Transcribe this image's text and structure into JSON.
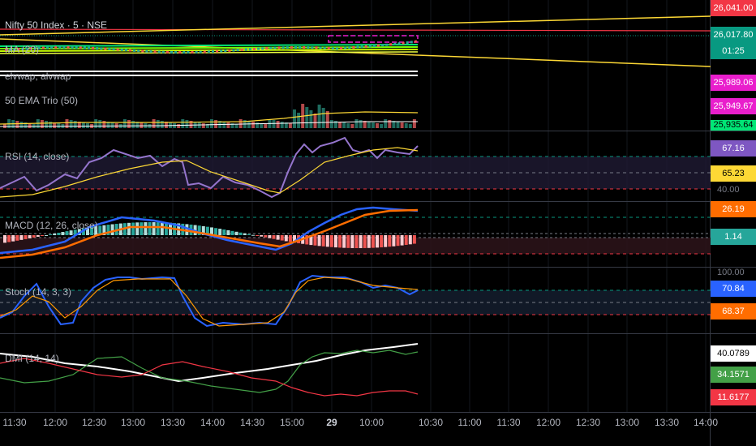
{
  "symbol": {
    "title": "Nifty 50 Index · 5 · NSE"
  },
  "indicators": {
    "ma": "MA (20)",
    "vwap": "elvwap, alvwap",
    "ema": "50 EMA Trio (50)",
    "rsi": "RSI (14, close)",
    "macd": "MACD (12, 26, close)",
    "stoch": "Stoch (14, 3, 3)",
    "dmi": "DMI (14, 14)"
  },
  "price_scale": {
    "p1": {
      "value": "26,041.00",
      "bg": "#f23645",
      "fg": "#ffffff"
    },
    "p2": {
      "value": "26,017.80",
      "bg": "#089981",
      "fg": "#ffffff"
    },
    "p2b": {
      "value": "01:25",
      "bg": "#089981",
      "fg": "#ffffff"
    },
    "p3": {
      "value": "25,989.06",
      "bg": "#e91ecc",
      "fg": "#ffffff"
    },
    "p4": {
      "value": "25,949.67",
      "bg": "#e91ecc",
      "fg": "#ffffff"
    },
    "p5": {
      "value": "25,935.64",
      "bg": "#00e676",
      "fg": "#000000"
    },
    "rsi1": {
      "value": "67.16",
      "bg": "#7e57c2",
      "fg": "#ffffff"
    },
    "rsi2": {
      "value": "65.23",
      "bg": "#fdd835",
      "fg": "#000000"
    },
    "rsi_scale": "40.00",
    "macd1": {
      "value": "26.19",
      "bg": "#ff6d00",
      "fg": "#ffffff"
    },
    "macd2": {
      "value": "1.14",
      "bg": "#26a69a",
      "fg": "#ffffff"
    },
    "stoch_scale": "100.00",
    "stoch1": {
      "value": "70.84",
      "bg": "#2962ff",
      "fg": "#ffffff"
    },
    "stoch2": {
      "value": "68.37",
      "bg": "#ff6d00",
      "fg": "#ffffff"
    },
    "dmi1": {
      "value": "40.0789",
      "bg": "#ffffff",
      "fg": "#000000"
    },
    "dmi2": {
      "value": "34.1571",
      "bg": "#43a047",
      "fg": "#ffffff"
    },
    "dmi3": {
      "value": "11.6177",
      "bg": "#f23645",
      "fg": "#ffffff"
    }
  },
  "time_axis": [
    "11:30",
    "12:00",
    "12:30",
    "13:00",
    "13:30",
    "14:00",
    "14:30",
    "15:00",
    "29",
    "10:00",
    "10:30",
    "11:00",
    "11:30",
    "12:00",
    "12:30",
    "13:00",
    "13:30",
    "14:00"
  ],
  "colors": {
    "background": "#000000",
    "grid": "#1e222d",
    "separator": "#363a45"
  }
}
